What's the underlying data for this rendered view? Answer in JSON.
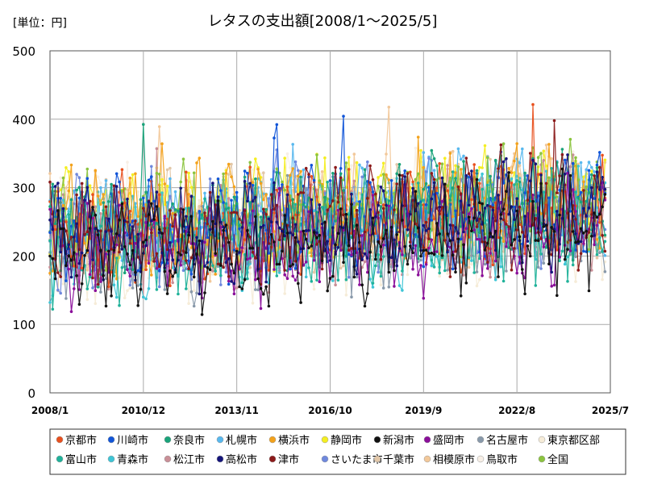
{
  "unit_label": "[単位：円]",
  "chart_data": {
    "type": "line",
    "title": "レタスの支出額[2008/1～2025/5]",
    "xlabel": "",
    "ylabel": "",
    "ylim": [
      0,
      500
    ],
    "y_ticks": [
      0,
      100,
      200,
      300,
      400,
      500
    ],
    "x_range": [
      "2008/1",
      "2025/7"
    ],
    "x_ticks": [
      "2008/1",
      "2010/12",
      "2013/11",
      "2016/10",
      "2019/9",
      "2022/8",
      "2025/7"
    ],
    "grid": true,
    "legend_position": "bottom",
    "marker": "circle",
    "series": [
      {
        "name": "京都市",
        "color": "#e8501e"
      },
      {
        "name": "川崎市",
        "color": "#1155d8"
      },
      {
        "name": "奈良市",
        "color": "#1aa37a"
      },
      {
        "name": "札幌市",
        "color": "#58b8ee"
      },
      {
        "name": "横浜市",
        "color": "#f3a21c"
      },
      {
        "name": "静岡市",
        "color": "#f4ee22"
      },
      {
        "name": "新潟市",
        "color": "#111111"
      },
      {
        "name": "盛岡市",
        "color": "#8a0f9a"
      },
      {
        "name": "名古屋市",
        "color": "#8899aa"
      },
      {
        "name": "東京都区部",
        "color": "#f6ecd8"
      },
      {
        "name": "富山市",
        "color": "#20b29a"
      },
      {
        "name": "青森市",
        "color": "#3ec5d6"
      },
      {
        "name": "松江市",
        "color": "#c98f97"
      },
      {
        "name": "高松市",
        "color": "#14147a"
      },
      {
        "name": "津市",
        "color": "#8b1a1a"
      },
      {
        "name": "さいたま市",
        "color": "#6f88dd"
      },
      {
        "name": "千葉市",
        "color": "#e2c7a8"
      },
      {
        "name": "相模原市",
        "color": "#f2c89a"
      },
      {
        "name": "鳥取市",
        "color": "#f7efe6"
      },
      {
        "name": "全国",
        "color": "#8bc43f"
      }
    ],
    "shape": {
      "start": "2008/1",
      "end": "2025/5",
      "typical_range": [
        100,
        350
      ],
      "max": 462,
      "min": 80
    }
  }
}
